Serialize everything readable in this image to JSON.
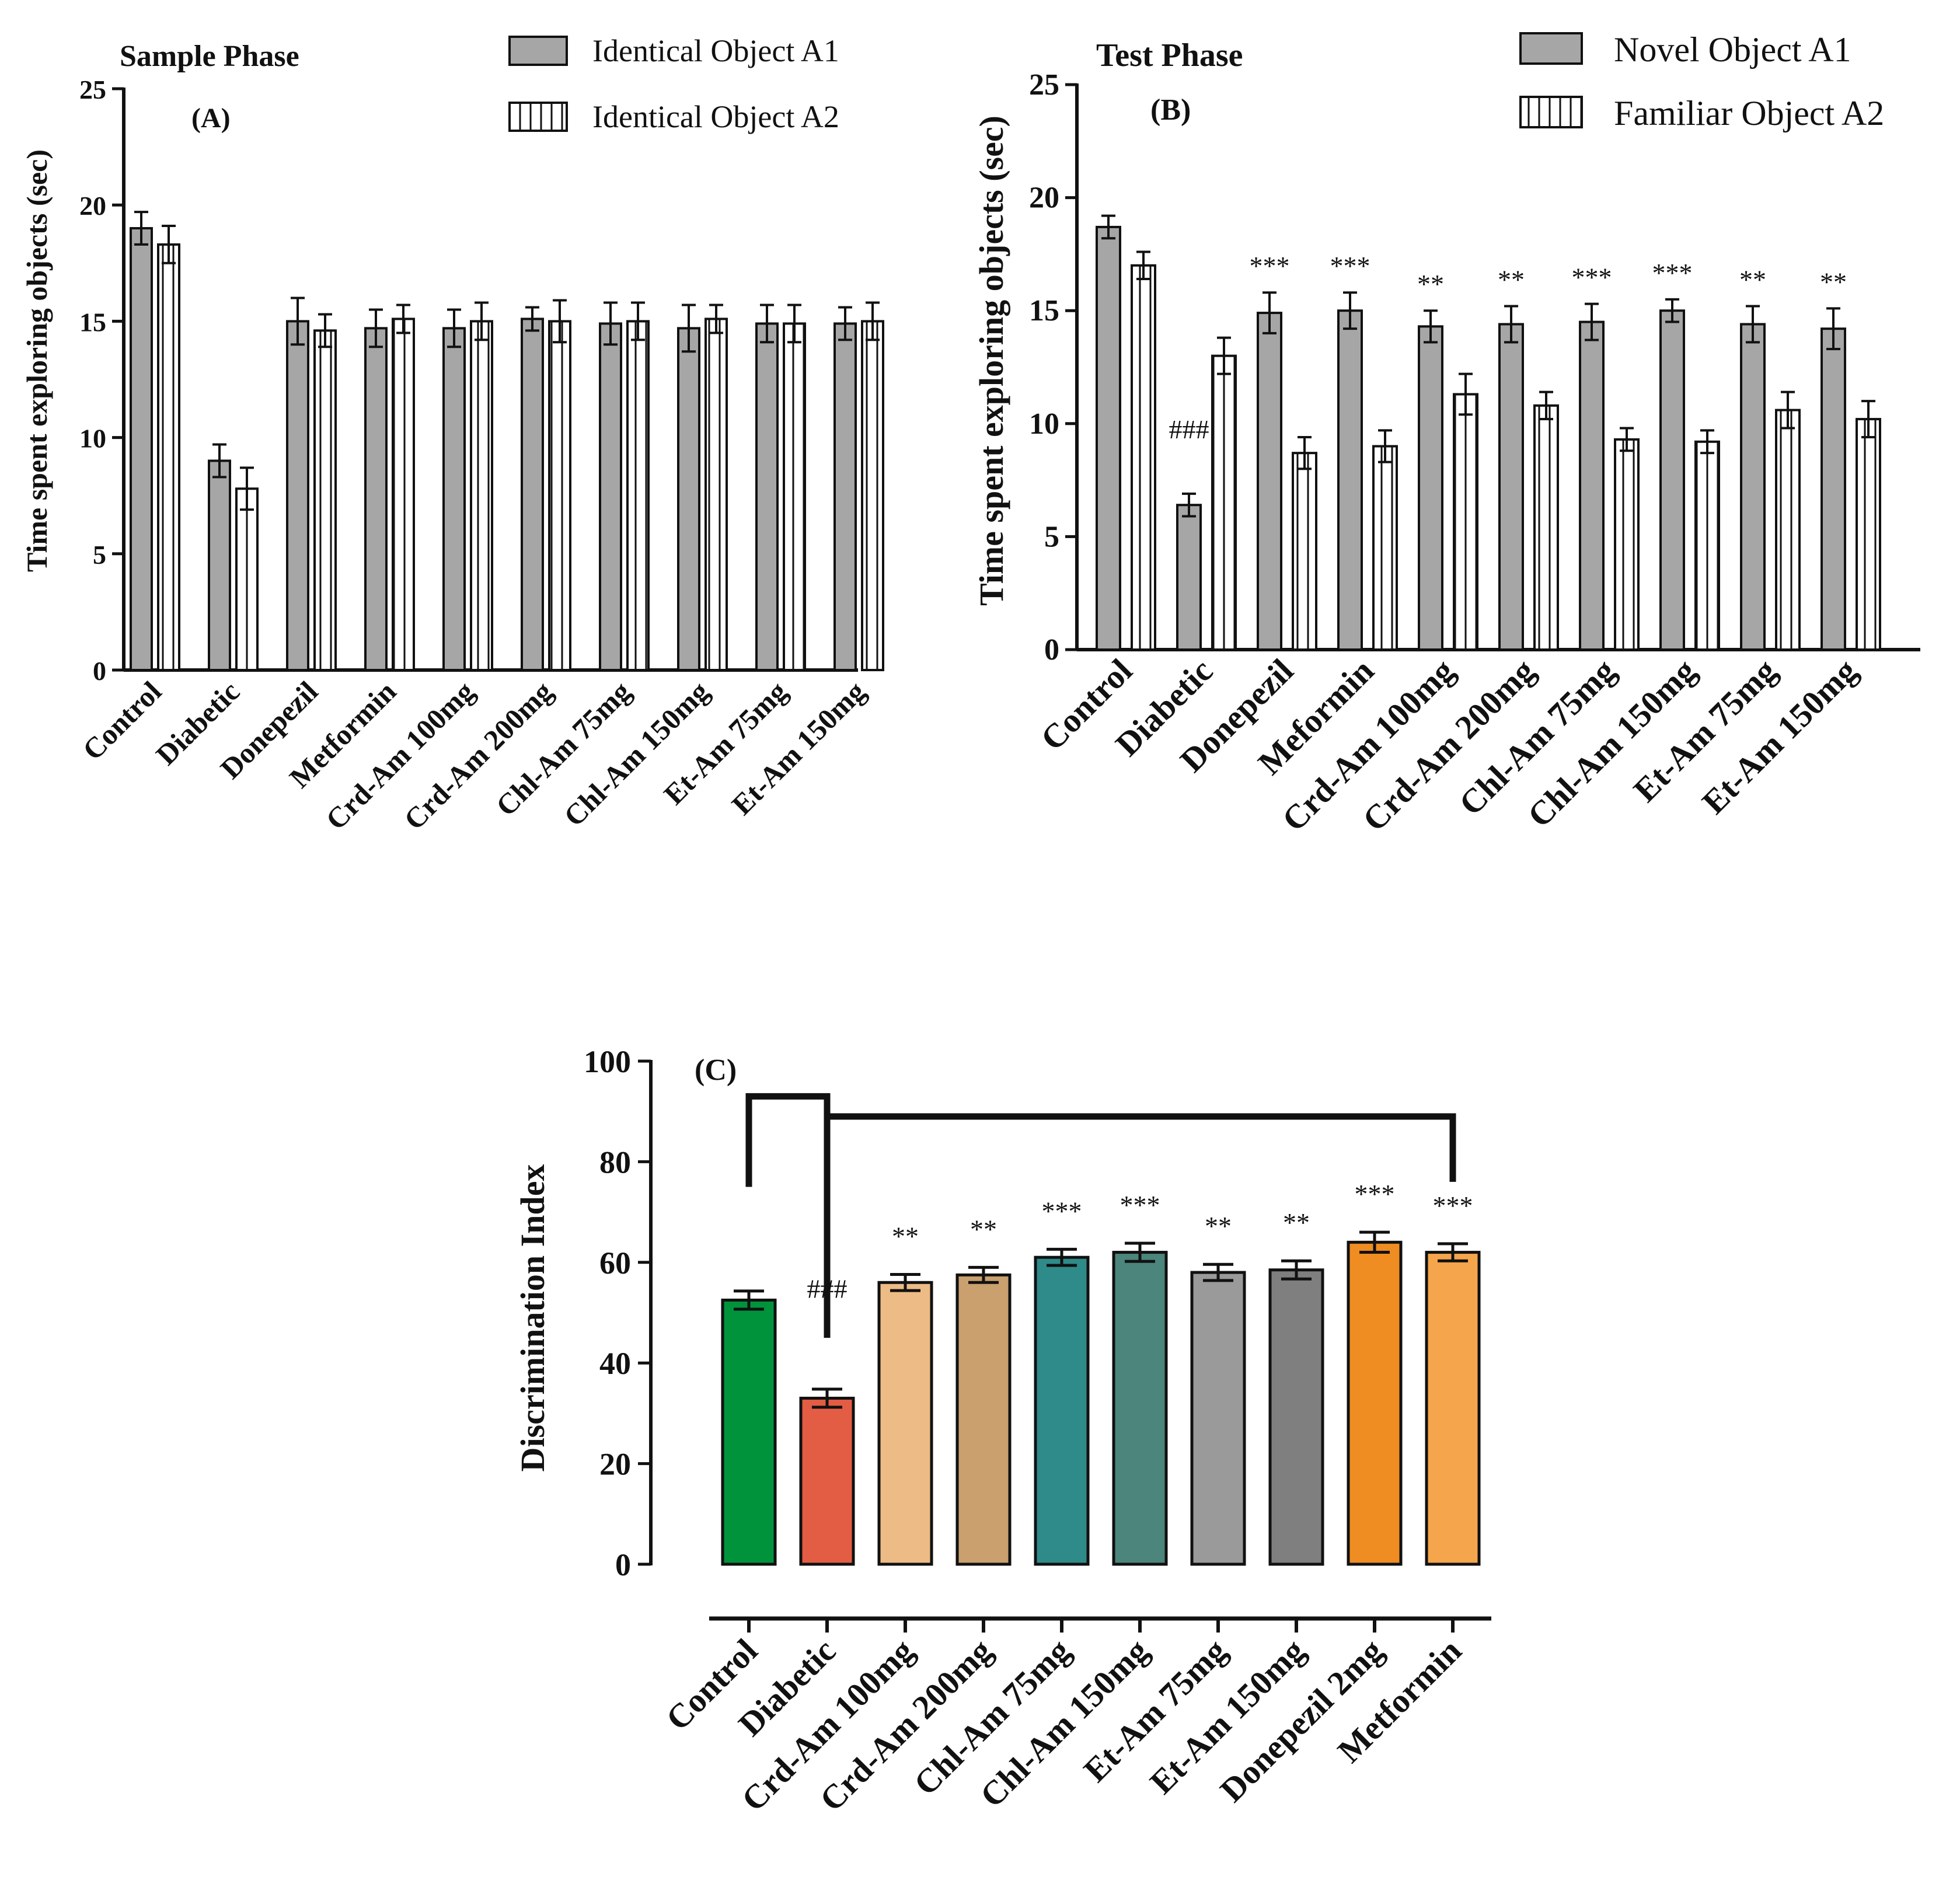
{
  "chart_data": [
    {
      "panel": "(A)",
      "type": "bar",
      "title": "Sample Phase",
      "ylabel": "Time spent exploring objects (sec)",
      "xlabel": "",
      "ylim": [
        0,
        25
      ],
      "yticks": [
        0,
        5,
        10,
        15,
        20,
        25
      ],
      "categories": [
        "Control",
        "Diabetic",
        "Donepezil",
        "Metformin",
        "Crd-Am 100mg",
        "Crd-Am 200mg",
        "Chl-Am 75mg",
        "Chl-Am 150mg",
        "Et-Am 75mg",
        "Et-Am 150mg"
      ],
      "legend_position": "top-right",
      "series": [
        {
          "name": "Identical Object A1",
          "style": "solid-gray",
          "color": "#a6a6a6",
          "values": [
            19.0,
            9.0,
            15.0,
            14.7,
            14.7,
            15.1,
            14.9,
            14.7,
            14.9,
            14.9
          ],
          "errors": [
            0.7,
            0.7,
            1.0,
            0.8,
            0.8,
            0.5,
            0.9,
            1.0,
            0.8,
            0.7
          ]
        },
        {
          "name": "Identical Object A2",
          "style": "vertical-hatch",
          "color": "#ffffff",
          "values": [
            18.3,
            7.8,
            14.6,
            15.1,
            15.0,
            15.0,
            15.0,
            15.1,
            14.9,
            15.0
          ],
          "errors": [
            0.8,
            0.9,
            0.7,
            0.6,
            0.8,
            0.9,
            0.8,
            0.6,
            0.8,
            0.8
          ]
        }
      ],
      "annotations": []
    },
    {
      "panel": "(B)",
      "type": "bar",
      "title": "Test Phase",
      "ylabel": "Time spent exploring objects (sec)",
      "xlabel": "",
      "ylim": [
        0,
        25
      ],
      "yticks": [
        0,
        5,
        10,
        15,
        20,
        25
      ],
      "categories": [
        "Control",
        "Diabetic",
        "Donepezil",
        "Meformin",
        "Crd-Am 100mg",
        "Crd-Am 200mg",
        "Chl-Am 75mg",
        "Chl-Am 150mg",
        "Et-Am 75mg",
        "Et-Am 150mg"
      ],
      "legend_position": "top-right",
      "series": [
        {
          "name": "Novel Object A1",
          "style": "solid-gray",
          "color": "#a6a6a6",
          "values": [
            18.7,
            6.4,
            14.9,
            15.0,
            14.3,
            14.4,
            14.5,
            15.0,
            14.4,
            14.2
          ],
          "errors": [
            0.5,
            0.5,
            0.9,
            0.8,
            0.7,
            0.8,
            0.8,
            0.5,
            0.8,
            0.9
          ]
        },
        {
          "name": "Familiar Object A2",
          "style": "vertical-hatch",
          "color": "#ffffff",
          "values": [
            17.0,
            13.0,
            8.7,
            9.0,
            11.3,
            10.8,
            9.3,
            9.2,
            10.6,
            10.2
          ],
          "errors": [
            0.6,
            0.8,
            0.7,
            0.7,
            0.9,
            0.6,
            0.5,
            0.5,
            0.8,
            0.8
          ]
        }
      ],
      "annotations": [
        {
          "category": "Diabetic",
          "text": "###"
        },
        {
          "category": "Donepezil",
          "text": "***"
        },
        {
          "category": "Meformin",
          "text": "***"
        },
        {
          "category": "Crd-Am 100mg",
          "text": "**"
        },
        {
          "category": "Crd-Am 200mg",
          "text": "**"
        },
        {
          "category": "Chl-Am 75mg",
          "text": "***"
        },
        {
          "category": "Chl-Am 150mg",
          "text": "***"
        },
        {
          "category": "Et-Am 75mg",
          "text": "**"
        },
        {
          "category": "Et-Am 150mg",
          "text": "**"
        }
      ]
    },
    {
      "panel": "(C)",
      "type": "bar",
      "title": "",
      "ylabel": "Discrimination Index",
      "xlabel": "",
      "ylim": [
        0,
        100
      ],
      "yticks": [
        0,
        20,
        40,
        60,
        80,
        100
      ],
      "categories": [
        "Control",
        "Diabetic",
        "Crd-Am 100mg",
        "Crd-Am 200mg",
        "Chl-Am 75mg",
        "Chl-Am 150mg",
        "Et-Am 75mg",
        "Et-Am 150mg",
        "Donepezil 2mg",
        "Metformin"
      ],
      "values": [
        52.5,
        33.0,
        56.0,
        57.5,
        61.0,
        62.0,
        58.0,
        58.5,
        64.0,
        62.0
      ],
      "errors": [
        1.8,
        1.8,
        1.6,
        1.5,
        1.6,
        1.8,
        1.6,
        1.8,
        2.0,
        1.7
      ],
      "colors": [
        "#00933c",
        "#e35d44",
        "#edbb85",
        "#c9a06e",
        "#2e8b89",
        "#4b857c",
        "#9a9a9a",
        "#7f7f7f",
        "#ef8c22",
        "#f5a54b"
      ],
      "annotations": [
        {
          "category": "Diabetic",
          "text": "###"
        },
        {
          "category": "Crd-Am 100mg",
          "text": "**"
        },
        {
          "category": "Crd-Am 200mg",
          "text": "**"
        },
        {
          "category": "Chl-Am 75mg",
          "text": "***"
        },
        {
          "category": "Chl-Am 150mg",
          "text": "***"
        },
        {
          "category": "Et-Am 75mg",
          "text": "**"
        },
        {
          "category": "Et-Am 150mg",
          "text": "**"
        },
        {
          "category": "Donepezil 2mg",
          "text": "***"
        },
        {
          "category": "Metformin",
          "text": "***"
        }
      ],
      "brackets": [
        {
          "from": "Control",
          "to": "Diabetic"
        },
        {
          "from": "Diabetic",
          "to": "Metformin"
        }
      ]
    }
  ]
}
